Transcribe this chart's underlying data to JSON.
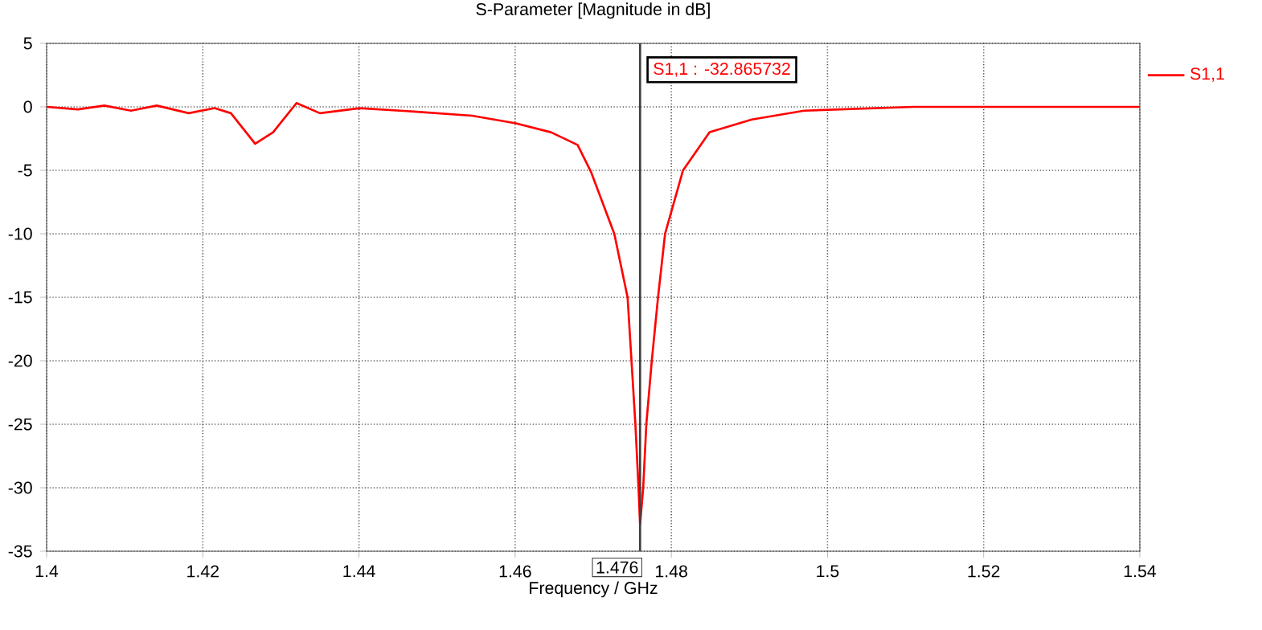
{
  "chart_data": {
    "type": "line",
    "title": "S-Parameter [Magnitude in dB]",
    "xlabel": "Frequency / GHz",
    "xlim": [
      1.4,
      1.54
    ],
    "xticks": [
      1.4,
      1.42,
      1.44,
      1.46,
      1.48,
      1.5,
      1.52,
      1.54
    ],
    "ylim": [
      -35,
      5
    ],
    "yticks": [
      -35,
      -30,
      -25,
      -20,
      -15,
      -10,
      -5,
      0,
      5
    ],
    "grid": true,
    "legend": "right",
    "marker": "none",
    "line_style": "solid",
    "series": [
      {
        "name": "S1,1",
        "color": "#ff0000",
        "x": [
          1.4,
          1.404,
          1.4074,
          1.4108,
          1.4141,
          1.4182,
          1.4215,
          1.4236,
          1.4267,
          1.429,
          1.432,
          1.435,
          1.4401,
          1.4478,
          1.4545,
          1.4601,
          1.4646,
          1.468,
          1.4697,
          1.4727,
          1.4744,
          1.4749,
          1.4754,
          1.4758,
          1.476,
          1.4764,
          1.4768,
          1.4775,
          1.4783,
          1.4792,
          1.4815,
          1.4849,
          1.4903,
          1.497,
          1.511,
          1.525,
          1.54
        ],
        "values": [
          0,
          -0.2,
          0.1,
          -0.3,
          0.1,
          -0.5,
          -0.1,
          -0.5,
          -2.9,
          -2.0,
          0.3,
          -0.5,
          -0.1,
          -0.4,
          -0.7,
          -1.3,
          -2.0,
          -3.0,
          -5.1,
          -10,
          -15,
          -20,
          -25,
          -30,
          -32.9,
          -30,
          -25,
          -20,
          -15,
          -10,
          -5,
          -2,
          -1,
          -0.3,
          0,
          0,
          0
        ]
      }
    ],
    "ref_lines": [
      {
        "axis": "x",
        "value": 1.476,
        "label": "1.476",
        "color": "#404040"
      }
    ],
    "annotations": [
      "S1,1 : -32.865732"
    ]
  }
}
